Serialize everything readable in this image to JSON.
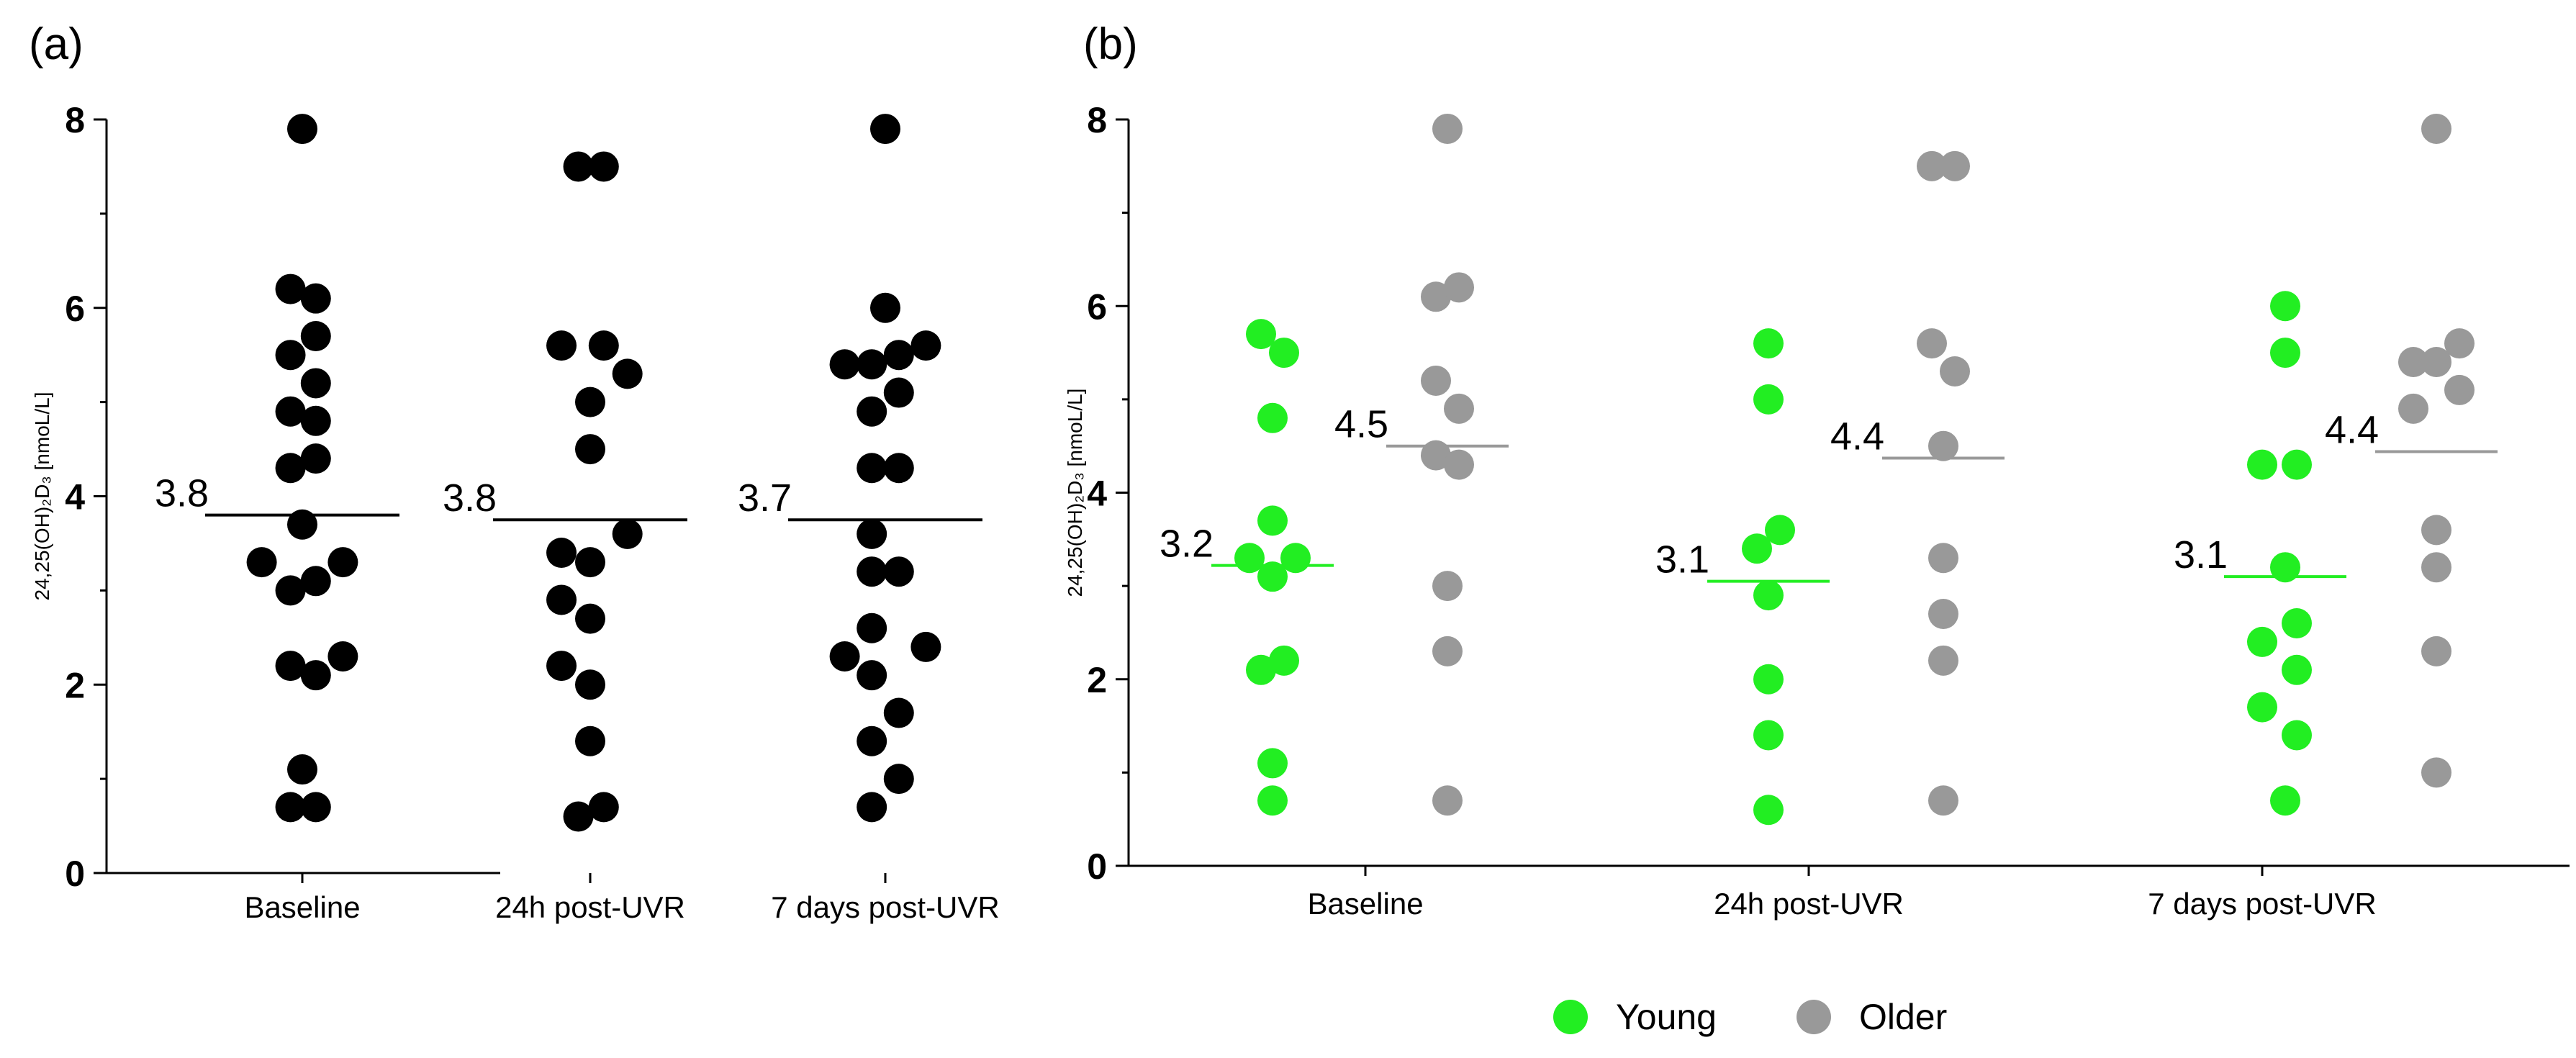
{
  "chart_data": [
    {
      "type": "scatter",
      "panel_label": "(a)",
      "ylabel": "24,25(OH)₂D₃ [nmoL/L]",
      "ylim": [
        0,
        8
      ],
      "yticks": [
        "0",
        "2",
        "4",
        "6",
        "8"
      ],
      "categories": [
        "Baseline",
        "24h post-UVR",
        "7 days post-UVR"
      ],
      "groups": [
        {
          "category": "Baseline",
          "mean": 3.8,
          "mean_label": "3.8",
          "points": [
            {
              "offset": 0.0,
              "y": 7.9
            },
            {
              "offset": -0.35,
              "y": 6.2
            },
            {
              "offset": 0.4,
              "y": 6.1
            },
            {
              "offset": 0.4,
              "y": 5.7
            },
            {
              "offset": -0.35,
              "y": 5.5
            },
            {
              "offset": 0.4,
              "y": 5.2
            },
            {
              "offset": -0.35,
              "y": 4.9
            },
            {
              "offset": 0.4,
              "y": 4.8
            },
            {
              "offset": 0.4,
              "y": 4.4
            },
            {
              "offset": -0.35,
              "y": 4.3
            },
            {
              "offset": 0.0,
              "y": 3.7
            },
            {
              "offset": -1.2,
              "y": 3.3
            },
            {
              "offset": 1.2,
              "y": 3.3
            },
            {
              "offset": 0.4,
              "y": 3.1
            },
            {
              "offset": -0.35,
              "y": 3.0
            },
            {
              "offset": 1.2,
              "y": 2.3
            },
            {
              "offset": -0.35,
              "y": 2.2
            },
            {
              "offset": 0.4,
              "y": 2.1
            },
            {
              "offset": 0.0,
              "y": 1.1
            },
            {
              "offset": -0.35,
              "y": 0.7
            },
            {
              "offset": 0.4,
              "y": 0.7
            }
          ]
        },
        {
          "category": "24h post-UVR",
          "mean": 3.75,
          "mean_label": "3.8",
          "points": [
            {
              "offset": -0.35,
              "y": 7.5
            },
            {
              "offset": 0.4,
              "y": 7.5
            },
            {
              "offset": -0.85,
              "y": 5.6
            },
            {
              "offset": 0.4,
              "y": 5.6
            },
            {
              "offset": 0.0,
              "y": 5.0
            },
            {
              "offset": 1.1,
              "y": 5.3
            },
            {
              "offset": 0.0,
              "y": 4.5
            },
            {
              "offset": 1.1,
              "y": 3.6
            },
            {
              "offset": -0.85,
              "y": 3.4
            },
            {
              "offset": 0.0,
              "y": 3.3
            },
            {
              "offset": -0.85,
              "y": 2.9
            },
            {
              "offset": 0.0,
              "y": 2.7
            },
            {
              "offset": -0.85,
              "y": 2.2
            },
            {
              "offset": 0.0,
              "y": 2.0
            },
            {
              "offset": 0.0,
              "y": 1.4
            },
            {
              "offset": -0.35,
              "y": 0.6
            },
            {
              "offset": 0.4,
              "y": 0.7
            }
          ]
        },
        {
          "category": "7 days post-UVR",
          "mean": 3.75,
          "mean_label": "3.7",
          "points": [
            {
              "offset": 0.0,
              "y": 7.9
            },
            {
              "offset": 0.0,
              "y": 6.0
            },
            {
              "offset": -1.2,
              "y": 5.4
            },
            {
              "offset": -0.4,
              "y": 5.4
            },
            {
              "offset": 0.4,
              "y": 5.5
            },
            {
              "offset": 1.2,
              "y": 5.6
            },
            {
              "offset": 0.4,
              "y": 5.1
            },
            {
              "offset": -0.4,
              "y": 4.9
            },
            {
              "offset": -0.4,
              "y": 4.3
            },
            {
              "offset": 0.4,
              "y": 4.3
            },
            {
              "offset": -0.4,
              "y": 3.6
            },
            {
              "offset": -0.4,
              "y": 3.2
            },
            {
              "offset": 0.4,
              "y": 3.2
            },
            {
              "offset": -0.4,
              "y": 2.6
            },
            {
              "offset": 1.2,
              "y": 2.4
            },
            {
              "offset": -1.2,
              "y": 2.3
            },
            {
              "offset": -0.4,
              "y": 2.1
            },
            {
              "offset": 0.4,
              "y": 1.7
            },
            {
              "offset": -0.4,
              "y": 1.4
            },
            {
              "offset": 0.4,
              "y": 1.0
            },
            {
              "offset": -0.4,
              "y": 0.7
            }
          ]
        }
      ]
    },
    {
      "type": "scatter",
      "panel_label": "(b)",
      "ylabel": "24,25(OH)₂D₃ [nmoL/L]",
      "ylim": [
        0,
        8
      ],
      "yticks": [
        "0",
        "2",
        "4",
        "6",
        "8"
      ],
      "categories": [
        "Baseline",
        "24h post-UVR",
        "7 days post-UVR"
      ],
      "series": [
        {
          "name": "Young",
          "color": "#22ee22"
        },
        {
          "name": "Older",
          "color": "#999999"
        }
      ],
      "groups": [
        {
          "category": "Baseline",
          "series": "Young",
          "mean": 3.22,
          "mean_label": "3.2",
          "points": [
            {
              "offset": -0.4,
              "y": 5.7
            },
            {
              "offset": 0.4,
              "y": 5.5
            },
            {
              "offset": 0.0,
              "y": 4.8
            },
            {
              "offset": 0.0,
              "y": 3.7
            },
            {
              "offset": -0.8,
              "y": 3.3
            },
            {
              "offset": 0.8,
              "y": 3.3
            },
            {
              "offset": 0.0,
              "y": 3.1
            },
            {
              "offset": 0.4,
              "y": 2.2
            },
            {
              "offset": -0.4,
              "y": 2.1
            },
            {
              "offset": 0.0,
              "y": 1.1
            },
            {
              "offset": 0.0,
              "y": 0.7
            }
          ]
        },
        {
          "category": "Baseline",
          "series": "Older",
          "mean": 4.5,
          "mean_label": "4.5",
          "points": [
            {
              "offset": 0.0,
              "y": 7.9
            },
            {
              "offset": -0.4,
              "y": 6.1
            },
            {
              "offset": 0.4,
              "y": 6.2
            },
            {
              "offset": -0.4,
              "y": 5.2
            },
            {
              "offset": 0.4,
              "y": 4.9
            },
            {
              "offset": -0.4,
              "y": 4.4
            },
            {
              "offset": 0.4,
              "y": 4.3
            },
            {
              "offset": 0.0,
              "y": 3.0
            },
            {
              "offset": 0.0,
              "y": 2.3
            },
            {
              "offset": 0.0,
              "y": 0.7
            }
          ]
        },
        {
          "category": "24h post-UVR",
          "series": "Young",
          "mean": 3.05,
          "mean_label": "3.1",
          "points": [
            {
              "offset": 0.0,
              "y": 5.6
            },
            {
              "offset": 0.0,
              "y": 5.0
            },
            {
              "offset": 0.4,
              "y": 3.6
            },
            {
              "offset": -0.4,
              "y": 3.4
            },
            {
              "offset": 0.0,
              "y": 2.9
            },
            {
              "offset": 0.0,
              "y": 2.0
            },
            {
              "offset": 0.0,
              "y": 1.4
            },
            {
              "offset": 0.0,
              "y": 0.6
            }
          ]
        },
        {
          "category": "24h post-UVR",
          "series": "Older",
          "mean": 4.37,
          "mean_label": "4.4",
          "points": [
            {
              "offset": -0.4,
              "y": 7.5
            },
            {
              "offset": 0.4,
              "y": 7.5
            },
            {
              "offset": -0.4,
              "y": 5.6
            },
            {
              "offset": 0.4,
              "y": 5.3
            },
            {
              "offset": 0.0,
              "y": 4.5
            },
            {
              "offset": 0.0,
              "y": 3.3
            },
            {
              "offset": 0.0,
              "y": 2.7
            },
            {
              "offset": 0.0,
              "y": 2.2
            },
            {
              "offset": 0.0,
              "y": 0.7
            }
          ]
        },
        {
          "category": "7 days post-UVR",
          "series": "Young",
          "mean": 3.1,
          "mean_label": "3.1",
          "points": [
            {
              "offset": 0.0,
              "y": 6.0
            },
            {
              "offset": 0.0,
              "y": 5.5
            },
            {
              "offset": -0.8,
              "y": 4.3
            },
            {
              "offset": 0.4,
              "y": 4.3
            },
            {
              "offset": 0.0,
              "y": 3.2
            },
            {
              "offset": 0.4,
              "y": 2.6
            },
            {
              "offset": -0.8,
              "y": 2.4
            },
            {
              "offset": 0.4,
              "y": 2.1
            },
            {
              "offset": -0.8,
              "y": 1.7
            },
            {
              "offset": 0.4,
              "y": 1.4
            },
            {
              "offset": 0.0,
              "y": 0.7
            }
          ]
        },
        {
          "category": "7 days post-UVR",
          "series": "Older",
          "mean": 4.44,
          "mean_label": "4.4",
          "points": [
            {
              "offset": 0.0,
              "y": 7.9
            },
            {
              "offset": -0.8,
              "y": 5.4
            },
            {
              "offset": 0.0,
              "y": 5.4
            },
            {
              "offset": 0.8,
              "y": 5.6
            },
            {
              "offset": 0.8,
              "y": 5.1
            },
            {
              "offset": -0.8,
              "y": 4.9
            },
            {
              "offset": 0.0,
              "y": 3.6
            },
            {
              "offset": 0.0,
              "y": 3.2
            },
            {
              "offset": 0.0,
              "y": 2.3
            },
            {
              "offset": 0.0,
              "y": 1.0
            }
          ]
        }
      ],
      "legend": {
        "position": "bottom",
        "items": [
          "Young",
          "Older"
        ]
      }
    }
  ]
}
